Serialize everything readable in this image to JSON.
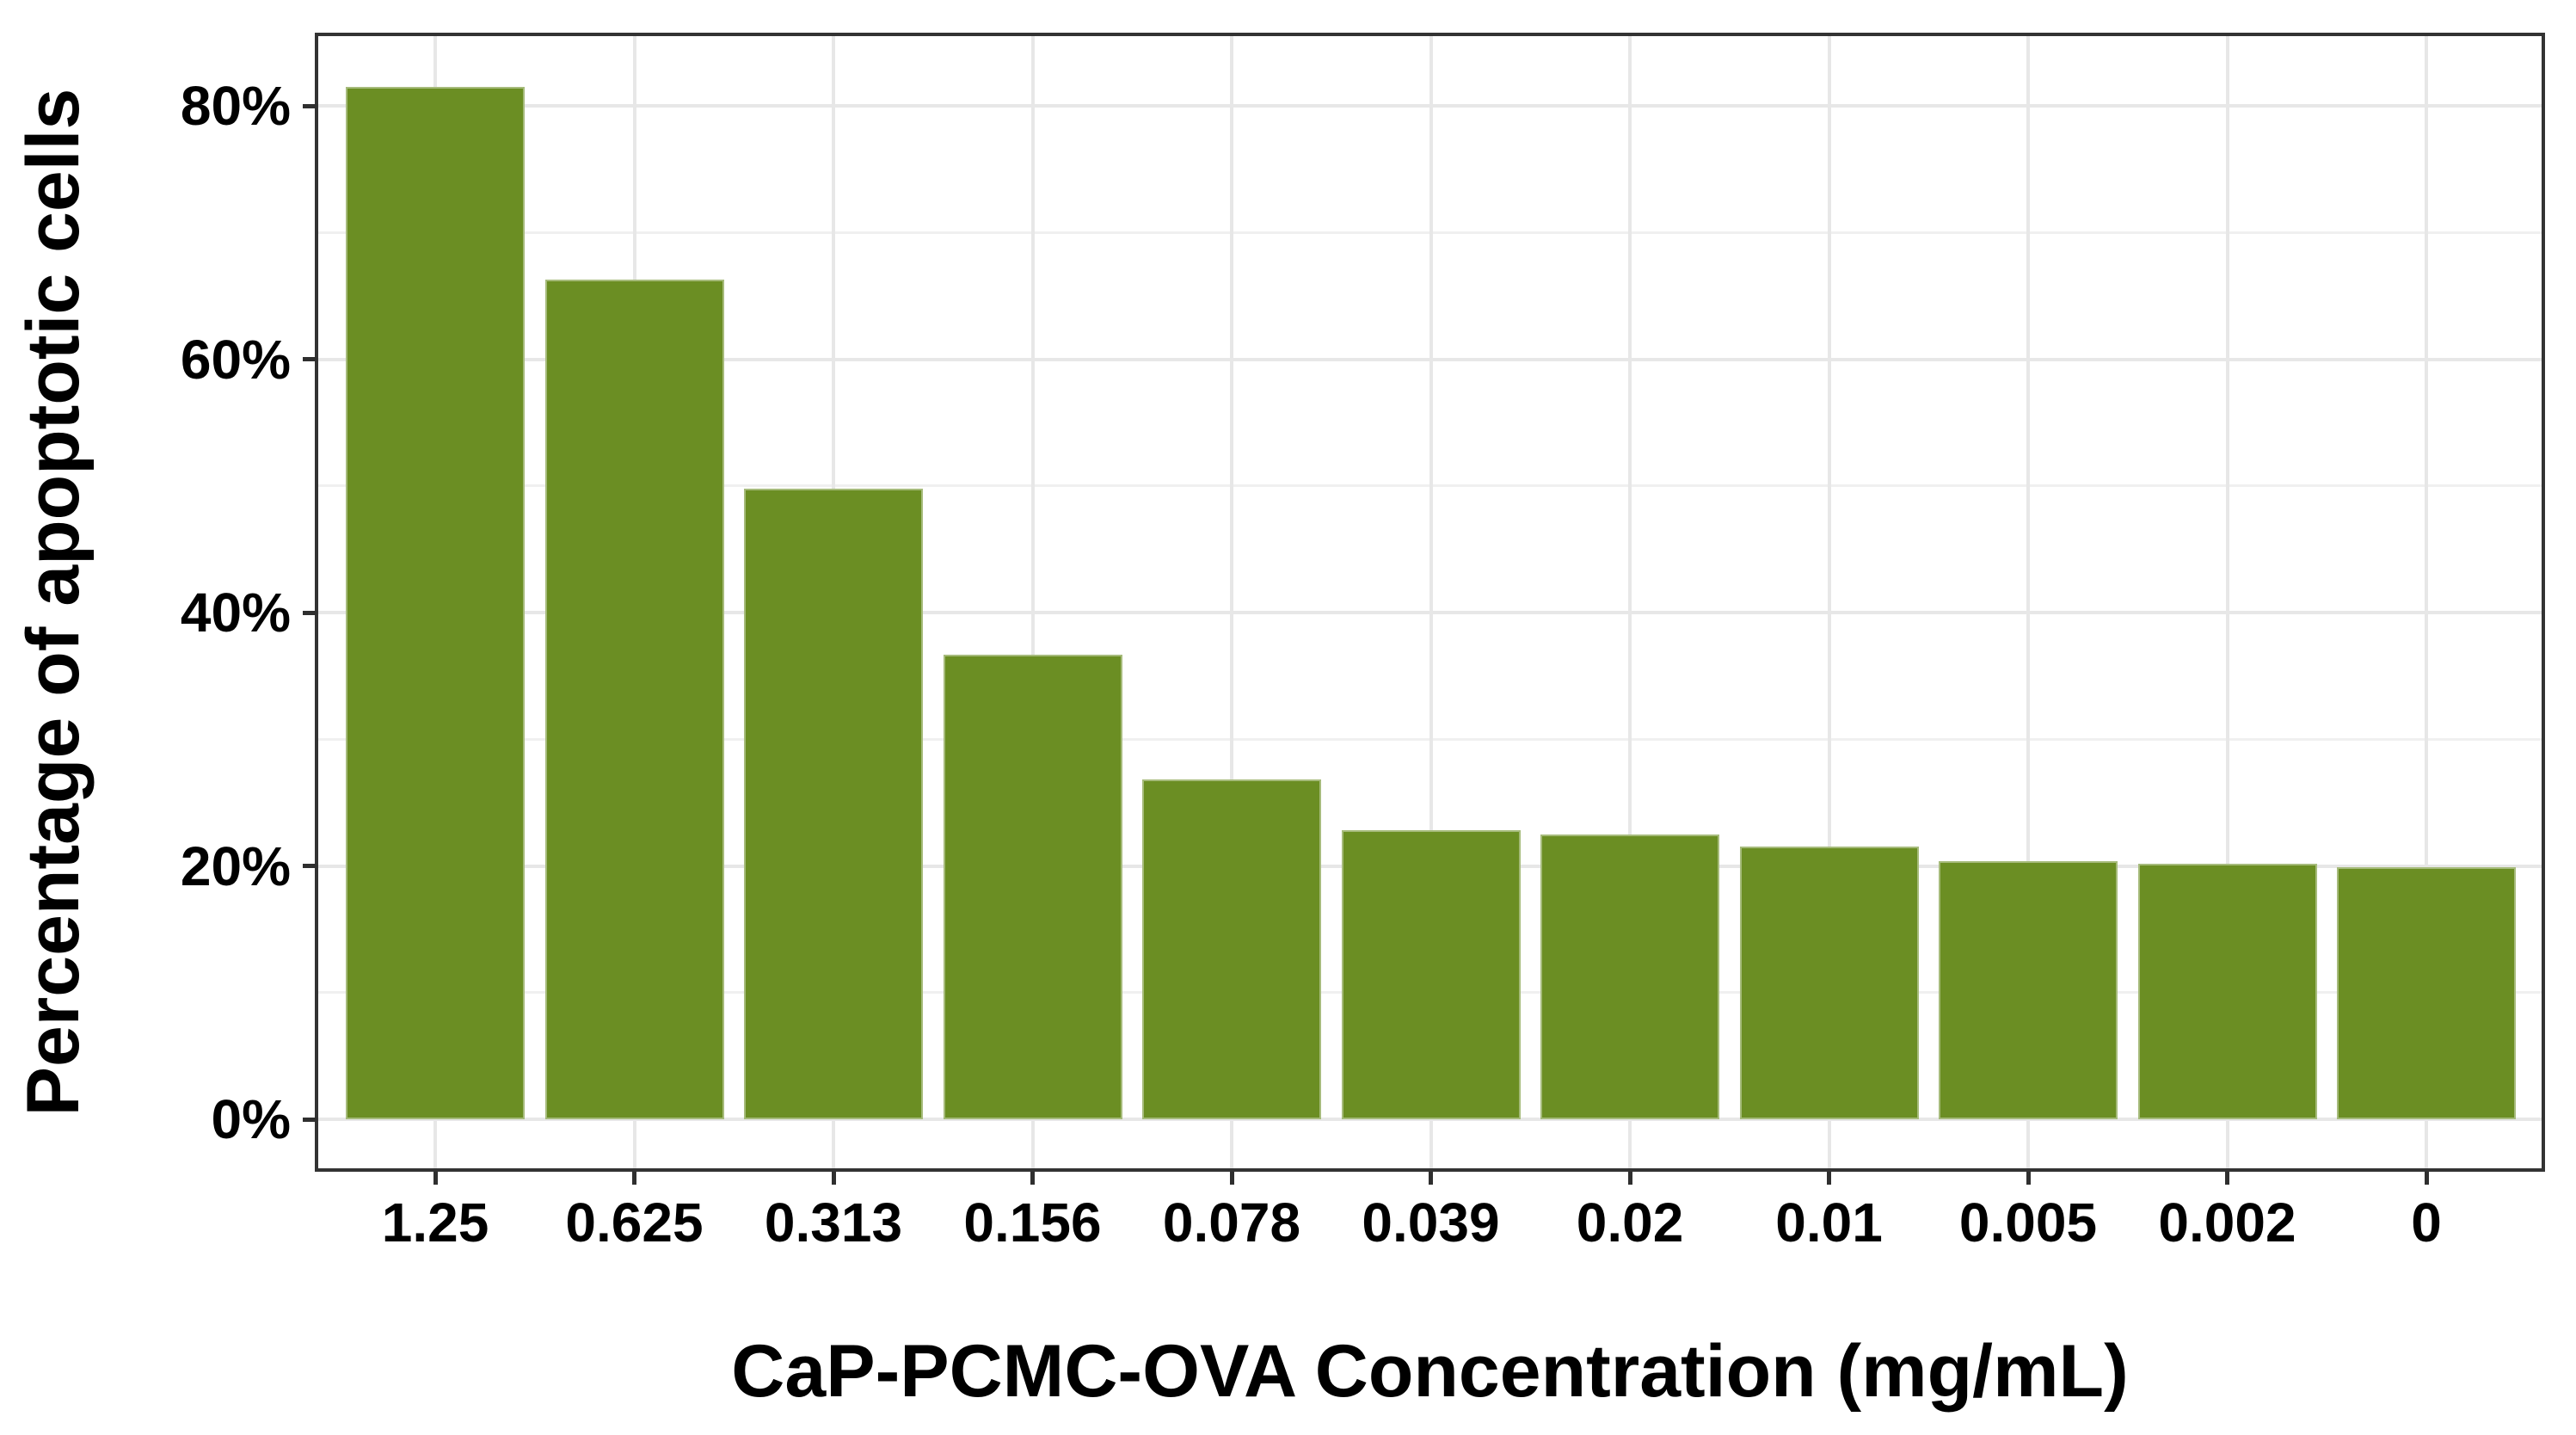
{
  "chart_data": {
    "type": "bar",
    "title": "",
    "xlabel": "CaP-PCMC-OVA Concentration (mg/mL)",
    "ylabel": "Percentage of apoptotic cells",
    "categories": [
      "1.25",
      "0.625",
      "0.313",
      "0.156",
      "0.078",
      "0.039",
      "0.02",
      "0.01",
      "0.005",
      "0.002",
      "0"
    ],
    "values": [
      81.5,
      66.3,
      49.8,
      36.7,
      26.8,
      22.8,
      22.5,
      21.5,
      20.4,
      20.2,
      19.9
    ],
    "series_name": "Percentage of apoptotic cells",
    "y_ticks": [
      0,
      20,
      40,
      60,
      80
    ],
    "y_tick_labels": [
      "0%",
      "20%",
      "40%",
      "60%",
      "80%"
    ],
    "y_minor_gridlines": [
      10,
      30,
      50,
      70
    ],
    "ylim": [
      -4.1,
      85.5
    ],
    "legend": "none",
    "grid": "horizontal major every 20% + horizontal minor every 10% + vertical major at category centers",
    "colors": {
      "bar": "#6B8E23",
      "panel_border": "#333333",
      "grid_major": "#E7E7E7",
      "grid_minor": "#F0F0F0",
      "tick": "#2F2F2F",
      "text": "#000000",
      "background": "#FFFFFF"
    }
  }
}
